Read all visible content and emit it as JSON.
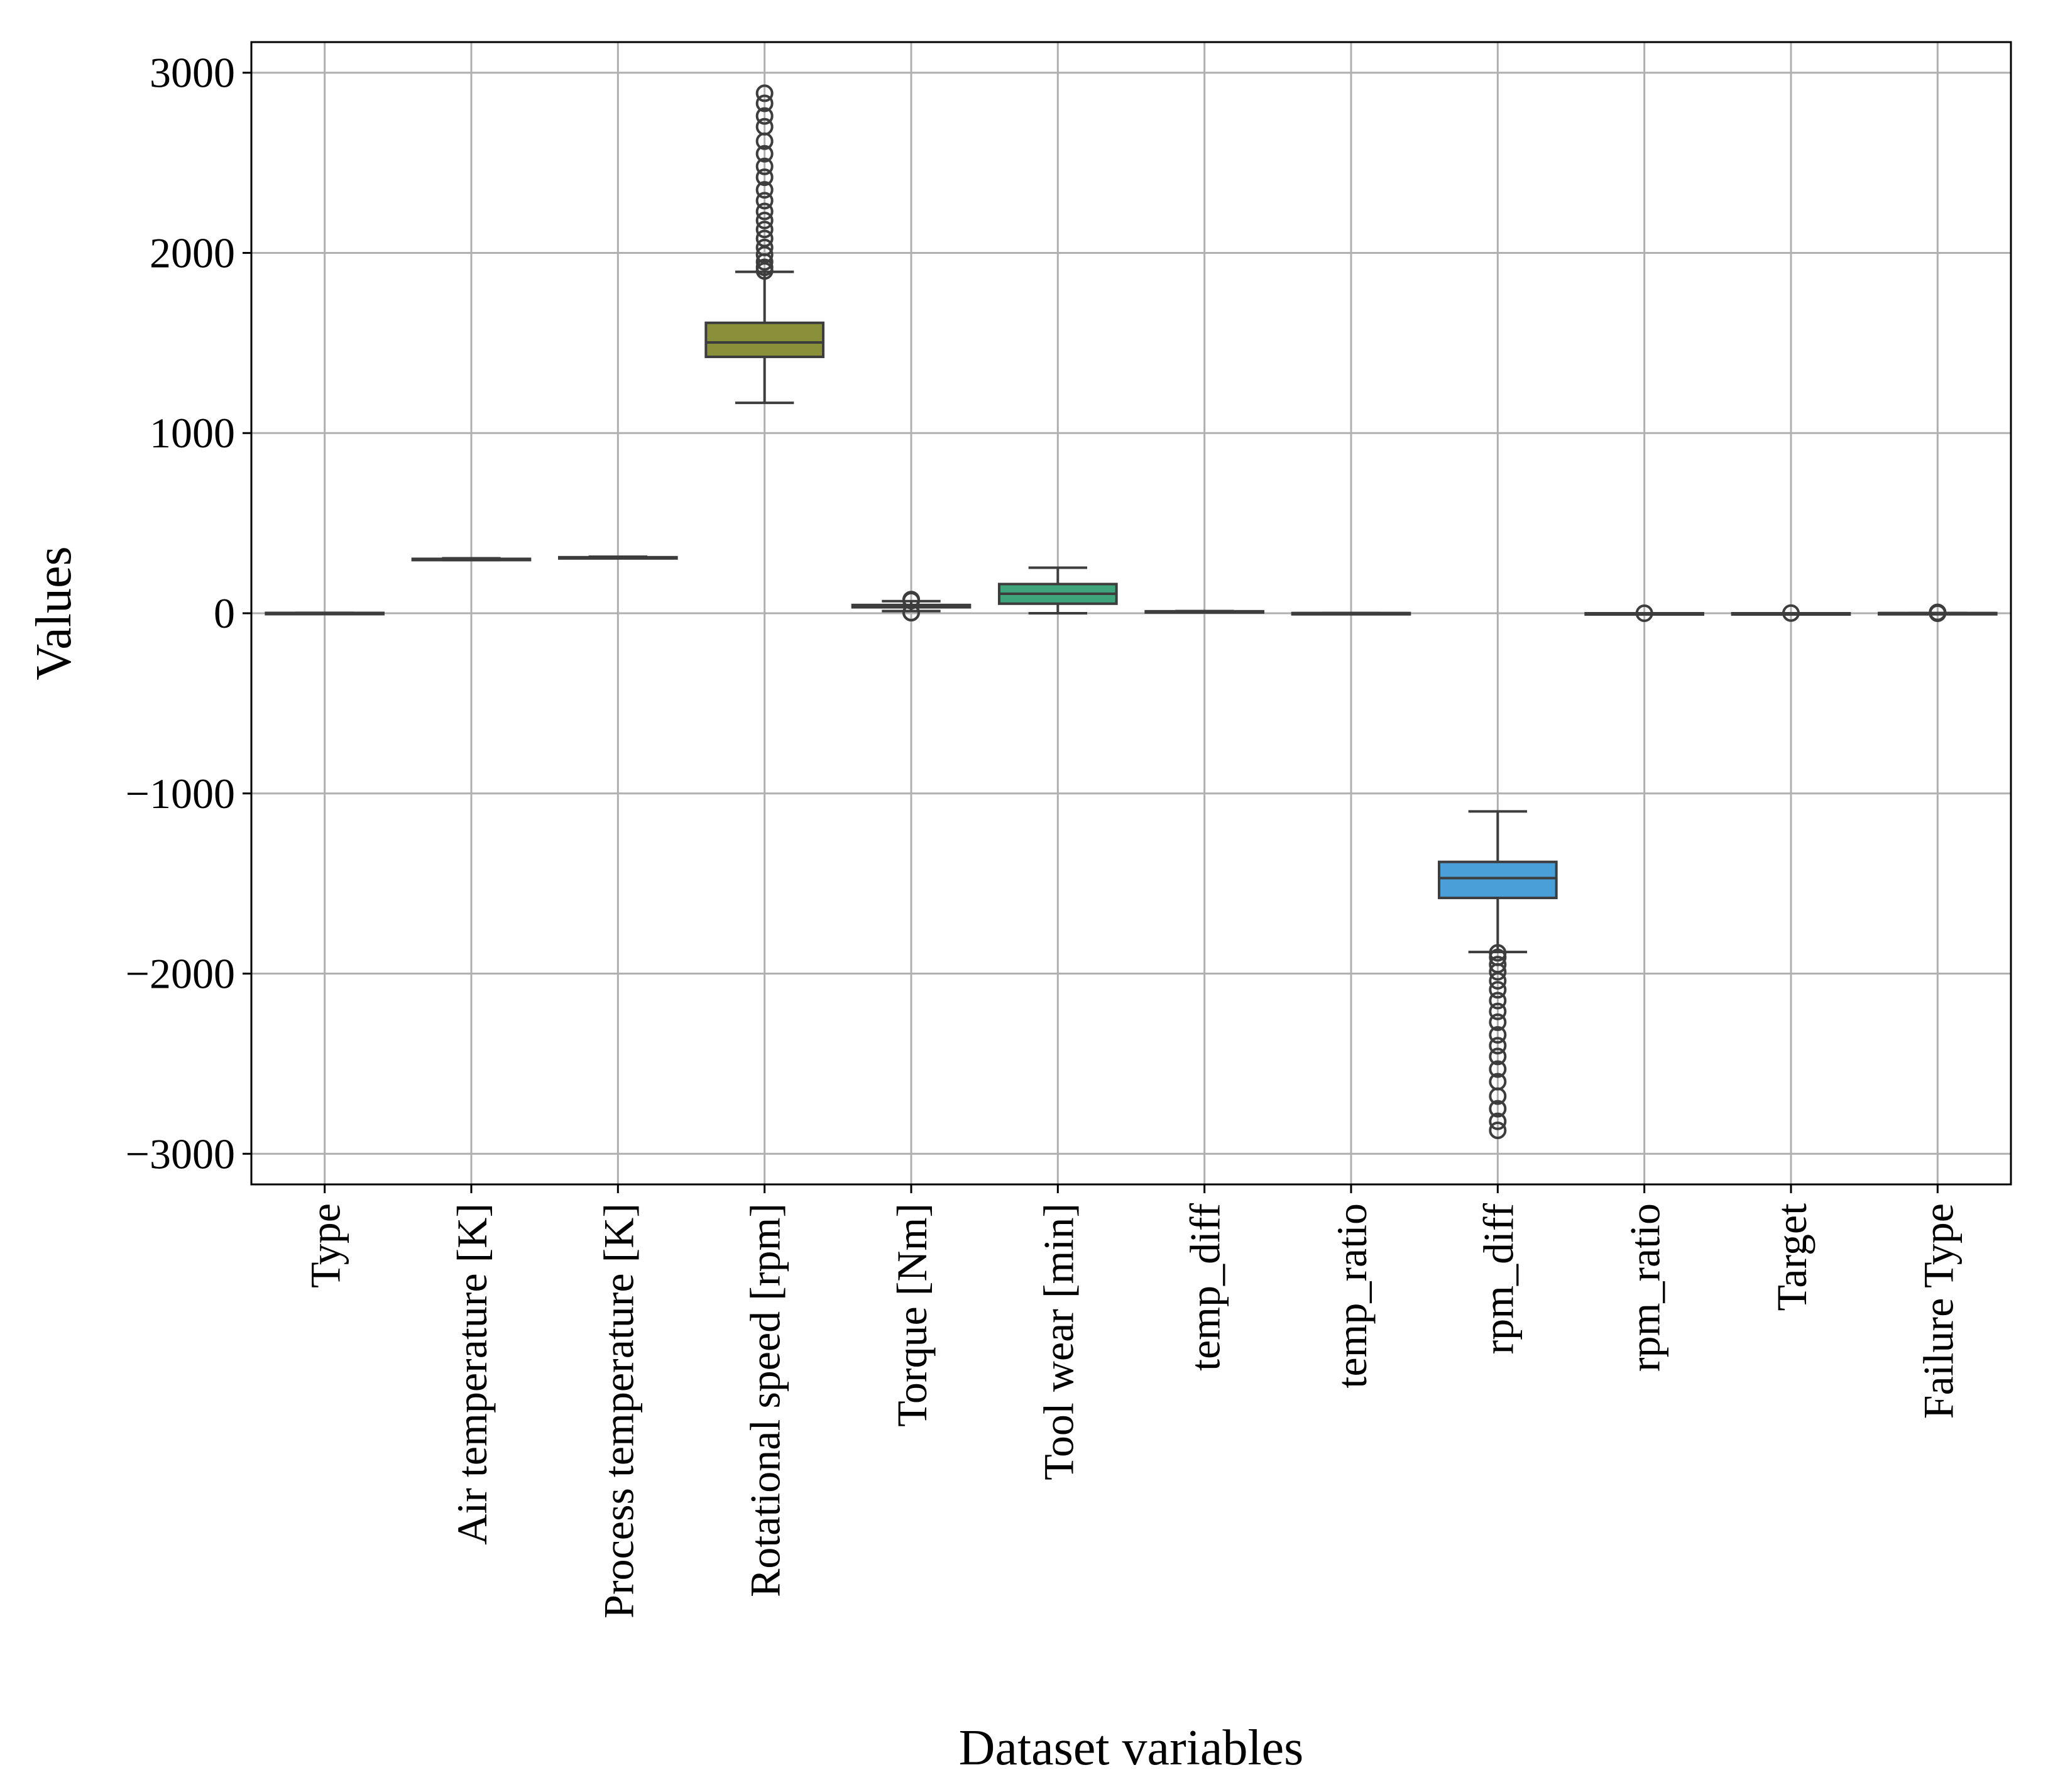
{
  "chart_data": {
    "type": "box",
    "title": "",
    "xlabel": "Dataset variables",
    "ylabel": "Values",
    "ylim": [
      -3170,
      3170
    ],
    "yticks": [
      3000,
      2000,
      1000,
      0,
      -1000,
      -2000,
      -3000
    ],
    "ytick_labels": [
      "3000",
      "2000",
      "1000",
      "0",
      "−1000",
      "−2000",
      "−3000"
    ],
    "grid": true,
    "categories": [
      "Type",
      "Air temperature [K]",
      "Process temperature [K]",
      "Rotational speed [rpm]",
      "Torque [Nm]",
      "Tool wear [min]",
      "temp_diff",
      "temp_ratio",
      "rpm_diff",
      "rpm_ratio",
      "Target",
      "Failure Type"
    ],
    "boxes": [
      {
        "name": "Type",
        "whisker_low": 0,
        "q1": 0,
        "median": 1,
        "q3": 2,
        "whisker_high": 2,
        "fliers": [],
        "color": "#3274a1"
      },
      {
        "name": "Air temperature [K]",
        "whisker_low": 295,
        "q1": 298,
        "median": 300,
        "q3": 302,
        "whisker_high": 305,
        "fliers": [],
        "color": "#e1812c"
      },
      {
        "name": "Process temperature [K]",
        "whisker_low": 305,
        "q1": 308,
        "median": 310,
        "q3": 311,
        "whisker_high": 314,
        "fliers": [],
        "color": "#3a923a"
      },
      {
        "name": "Rotational speed [rpm]",
        "whisker_low": 1168,
        "q1": 1423,
        "median": 1503,
        "q3": 1612,
        "whisker_high": 1895,
        "fliers": [
          1900,
          1920,
          1950,
          1990,
          2030,
          2080,
          2130,
          2180,
          2230,
          2290,
          2350,
          2420,
          2480,
          2550,
          2620,
          2700,
          2760,
          2830,
          2886
        ],
        "color": "#8a8f3a"
      },
      {
        "name": "Torque [Nm]",
        "whisker_low": 12,
        "q1": 33,
        "median": 40,
        "q3": 46,
        "whisker_high": 67,
        "fliers": [
          3,
          4,
          70,
          72,
          74,
          76
        ],
        "color": "#c03d3e"
      },
      {
        "name": "Tool wear [min]",
        "whisker_low": 0,
        "q1": 53,
        "median": 108,
        "q3": 162,
        "whisker_high": 253,
        "fliers": [],
        "color": "#3fa37b"
      },
      {
        "name": "temp_diff",
        "whisker_low": 7,
        "q1": 9,
        "median": 10,
        "q3": 11,
        "whisker_high": 12,
        "fliers": [],
        "color": "#9372b2"
      },
      {
        "name": "temp_ratio",
        "whisker_low": 1,
        "q1": 1,
        "median": 1,
        "q3": 1,
        "whisker_high": 1,
        "fliers": [],
        "color": "#845b53"
      },
      {
        "name": "rpm_diff",
        "whisker_low": -1880,
        "q1": -1580,
        "median": -1470,
        "q3": -1380,
        "whisker_high": -1100,
        "fliers": [
          -1885,
          -1910,
          -1950,
          -1990,
          -2040,
          -2090,
          -2150,
          -2210,
          -2270,
          -2340,
          -2400,
          -2460,
          -2530,
          -2600,
          -2680,
          -2750,
          -2820,
          -2870
        ],
        "color": "#4a9fd8"
      },
      {
        "name": "rpm_ratio",
        "whisker_low": 0,
        "q1": 0,
        "median": 0,
        "q3": 0,
        "whisker_high": 0,
        "fliers": [
          0
        ],
        "color": "#d684bd"
      },
      {
        "name": "Target",
        "whisker_low": 0,
        "q1": 0,
        "median": 0,
        "q3": 0,
        "whisker_high": 0,
        "fliers": [
          1
        ],
        "color": "#7f7f7f"
      },
      {
        "name": "Failure Type",
        "whisker_low": 1,
        "q1": 1,
        "median": 1,
        "q3": 1,
        "whisker_high": 1,
        "fliers": [
          0,
          2,
          3,
          4,
          5
        ],
        "color": "#a9aa35"
      }
    ]
  }
}
